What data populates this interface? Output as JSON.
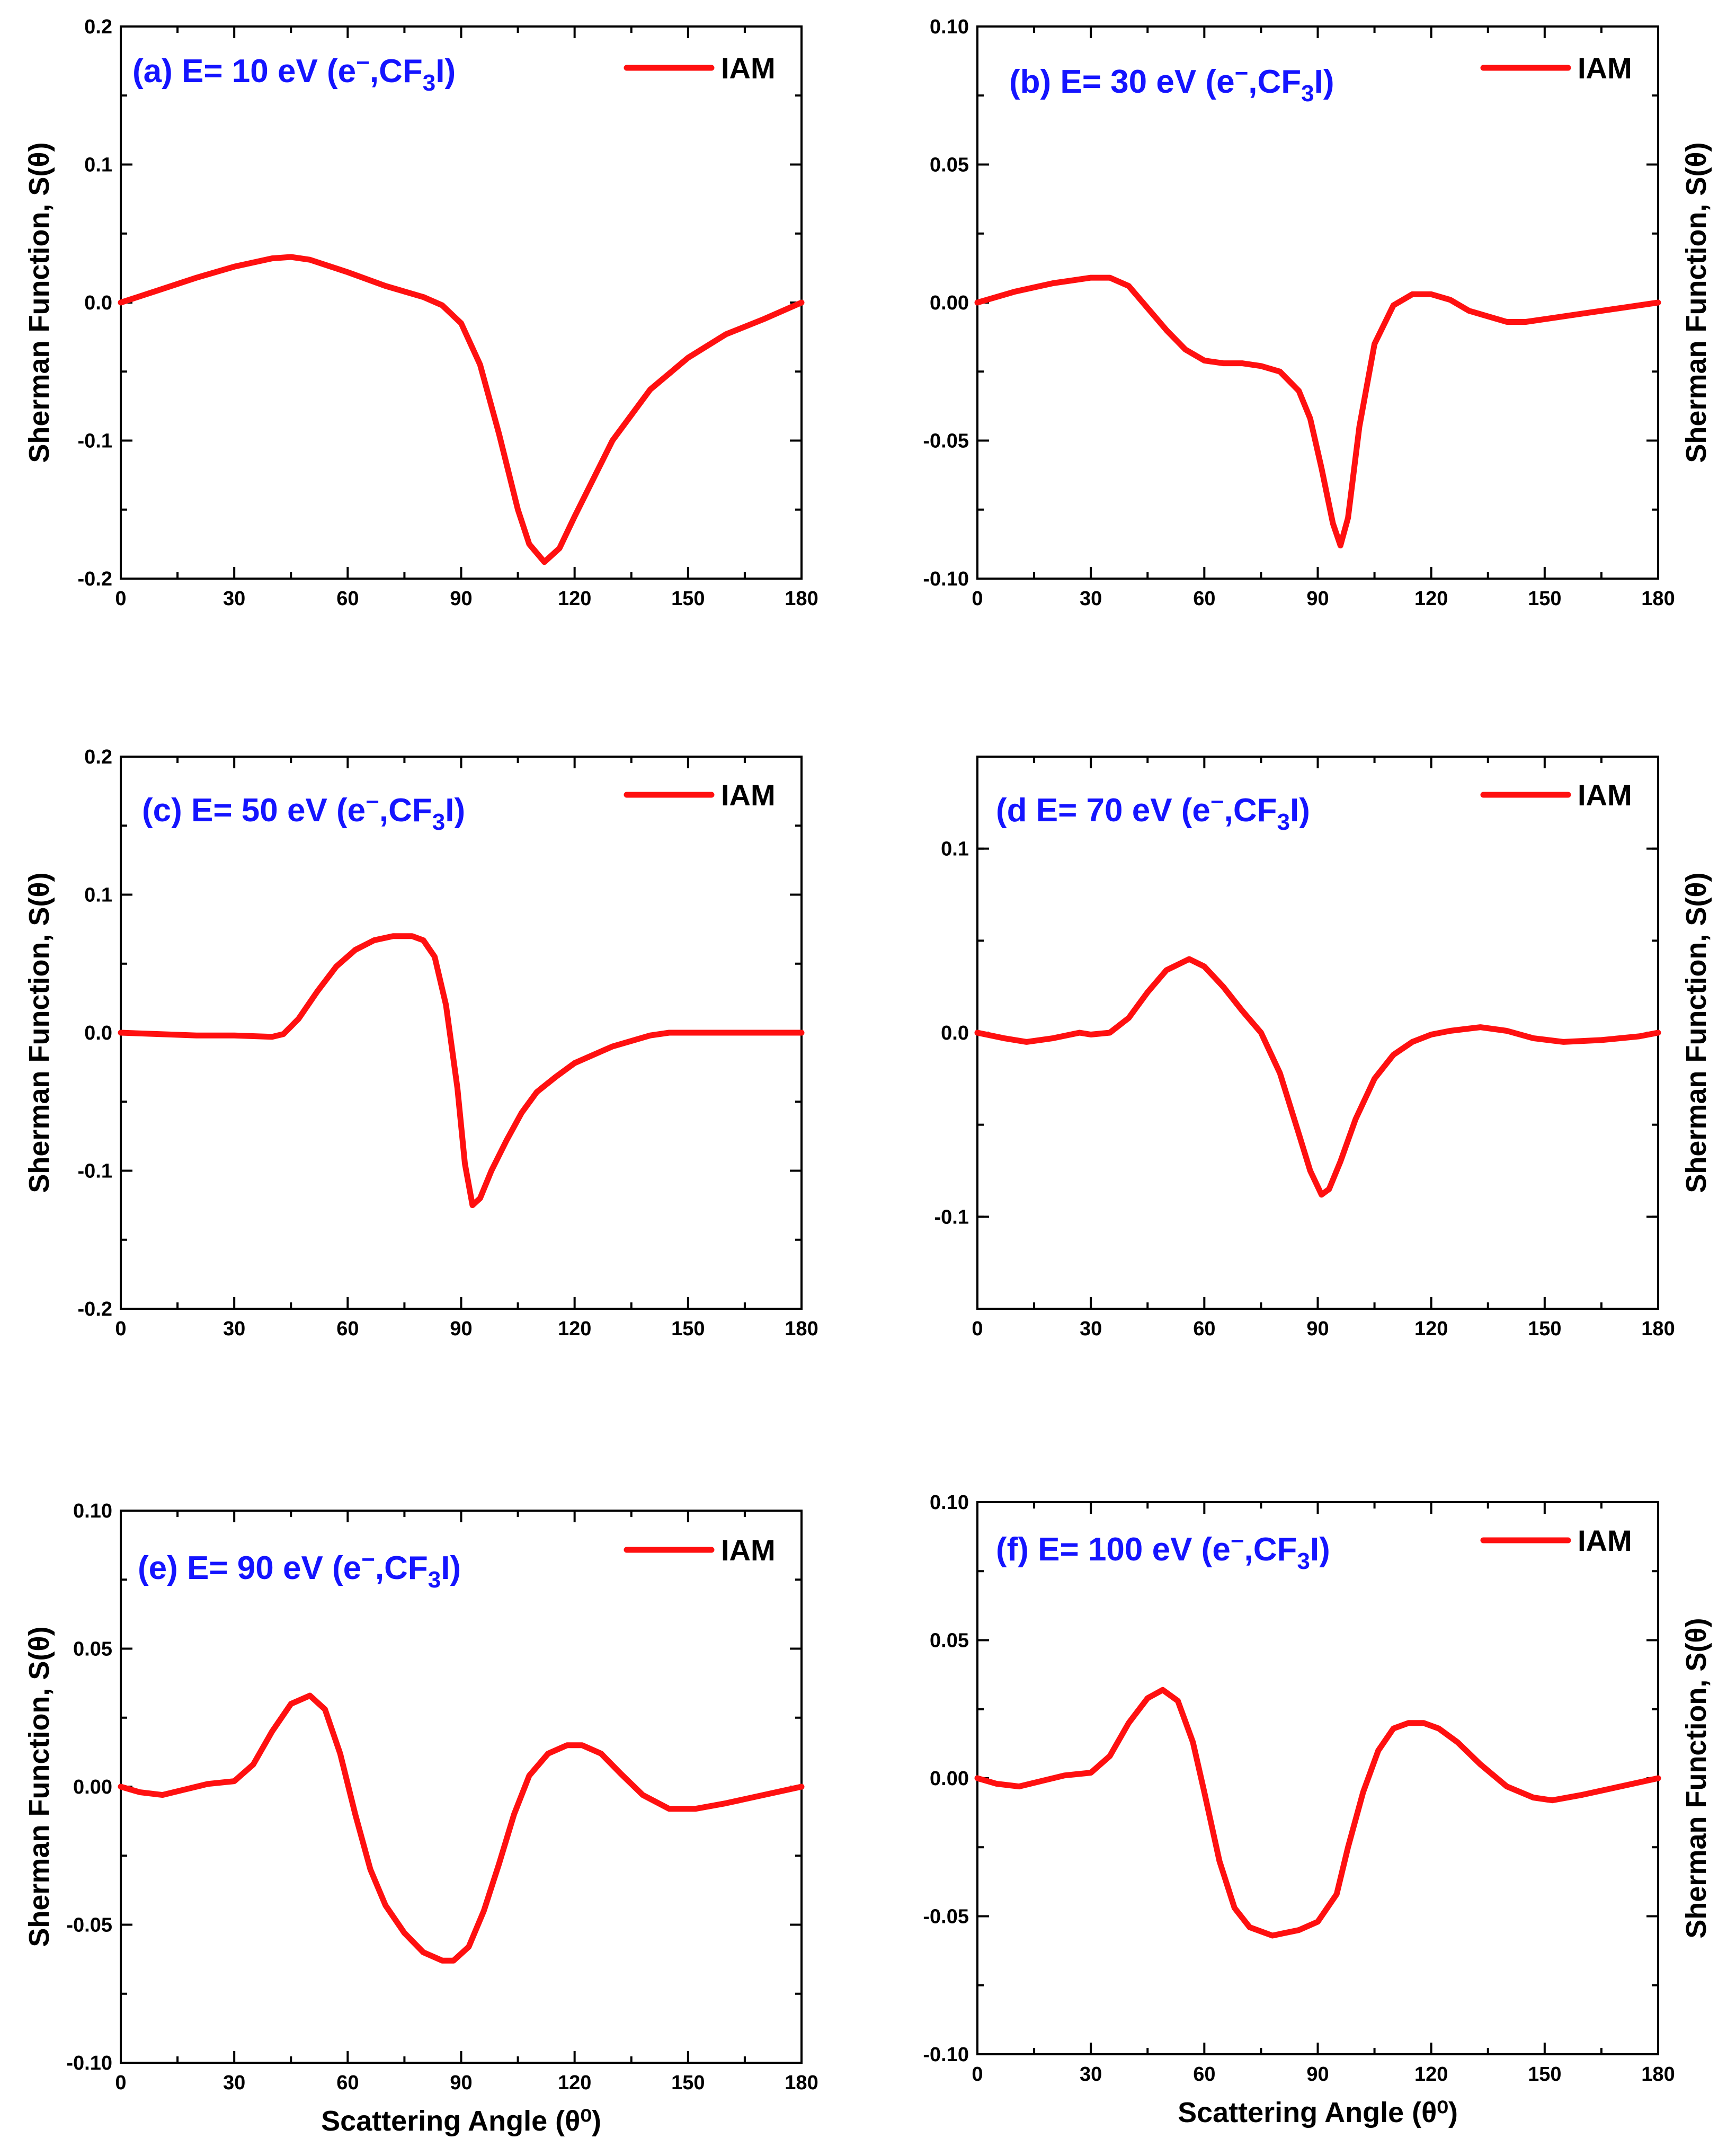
{
  "chart_data": [
    {
      "type": "line",
      "panel": "a",
      "title": "(a) E= 10 eV (e⁻,CF₃I)",
      "title_parts": {
        "pre": "(a) E= 10 eV (e",
        "sup": "−",
        "mid": ",CF",
        "sub": "3",
        "post": "I)"
      },
      "legend": "IAM",
      "xlabel": "",
      "ylabel": "Sherman Function, S(θ)",
      "ylabel_side": "left",
      "xlim": [
        0,
        180
      ],
      "ylim": [
        -0.2,
        0.2
      ],
      "xticks": [
        0,
        30,
        60,
        90,
        120,
        150,
        180
      ],
      "yticks": [
        -0.2,
        -0.1,
        0.0,
        0.1,
        0.2
      ],
      "ytick_labels": [
        "-0.2",
        "-0.1",
        "0.0",
        "0.1",
        "0.2"
      ],
      "series": [
        {
          "name": "IAM",
          "color": "#ff1010",
          "x": [
            0,
            10,
            20,
            30,
            40,
            45,
            50,
            60,
            70,
            80,
            85,
            90,
            95,
            100,
            105,
            108,
            112,
            116,
            120,
            130,
            140,
            150,
            160,
            170,
            180
          ],
          "y": [
            0,
            0.009,
            0.018,
            0.026,
            0.032,
            0.033,
            0.031,
            0.022,
            0.012,
            0.004,
            -0.002,
            -0.015,
            -0.045,
            -0.095,
            -0.15,
            -0.175,
            -0.188,
            -0.178,
            -0.155,
            -0.1,
            -0.063,
            -0.04,
            -0.023,
            -0.012,
            0
          ]
        }
      ]
    },
    {
      "type": "line",
      "panel": "b",
      "title": "(b) E= 30 eV (e⁻,CF₃I)",
      "title_parts": {
        "pre": "(b) E= 30 eV (e",
        "sup": "−",
        "mid": ",CF",
        "sub": "3",
        "post": "I)"
      },
      "legend": "IAM",
      "xlabel": "",
      "ylabel": "Sherman Function, S(θ)",
      "ylabel_side": "right",
      "xlim": [
        0,
        180
      ],
      "ylim": [
        -0.1,
        0.1
      ],
      "xticks": [
        0,
        30,
        60,
        90,
        120,
        150,
        180
      ],
      "yticks": [
        -0.1,
        -0.05,
        0.0,
        0.05,
        0.1
      ],
      "ytick_labels": [
        "-0.10",
        "-0.05",
        "0.00",
        "0.05",
        "0.10"
      ],
      "series": [
        {
          "name": "IAM",
          "color": "#ff1010",
          "x": [
            0,
            10,
            20,
            30,
            35,
            40,
            45,
            50,
            55,
            60,
            65,
            70,
            75,
            80,
            85,
            88,
            91,
            94,
            96,
            98,
            101,
            105,
            110,
            115,
            120,
            125,
            130,
            140,
            145,
            150,
            160,
            170,
            180
          ],
          "y": [
            0,
            0.004,
            0.007,
            0.009,
            0.009,
            0.006,
            -0.002,
            -0.01,
            -0.017,
            -0.021,
            -0.022,
            -0.022,
            -0.023,
            -0.025,
            -0.032,
            -0.042,
            -0.06,
            -0.08,
            -0.088,
            -0.078,
            -0.045,
            -0.015,
            -0.001,
            0.003,
            0.003,
            0.001,
            -0.003,
            -0.007,
            -0.007,
            -0.006,
            -0.004,
            -0.002,
            0
          ]
        }
      ]
    },
    {
      "type": "line",
      "panel": "c",
      "title": "(c) E= 50 eV (e⁻,CF₃I)",
      "title_parts": {
        "pre": "(c) E= 50 eV (e",
        "sup": "−",
        "mid": ",CF",
        "sub": "3",
        "post": "I)"
      },
      "legend": "IAM",
      "xlabel": "",
      "ylabel": "Sherman Function, S(θ)",
      "ylabel_side": "left",
      "xlim": [
        0,
        180
      ],
      "ylim": [
        -0.2,
        0.2
      ],
      "xticks": [
        0,
        30,
        60,
        90,
        120,
        150,
        180
      ],
      "yticks": [
        -0.2,
        -0.1,
        0.0,
        0.1,
        0.2
      ],
      "ytick_labels": [
        "-0.2",
        "-0.1",
        "0.0",
        "0.1",
        "0.2"
      ],
      "series": [
        {
          "name": "IAM",
          "color": "#ff1010",
          "x": [
            0,
            10,
            20,
            30,
            40,
            43,
            47,
            52,
            57,
            62,
            67,
            72,
            77,
            80,
            83,
            86,
            89,
            91,
            93,
            95,
            98,
            102,
            106,
            110,
            115,
            120,
            130,
            140,
            145,
            150,
            160,
            170,
            180
          ],
          "y": [
            0,
            -0.001,
            -0.002,
            -0.002,
            -0.003,
            -0.001,
            0.01,
            0.03,
            0.048,
            0.06,
            0.067,
            0.07,
            0.07,
            0.067,
            0.055,
            0.02,
            -0.04,
            -0.095,
            -0.125,
            -0.12,
            -0.1,
            -0.078,
            -0.058,
            -0.043,
            -0.032,
            -0.022,
            -0.01,
            -0.002,
            0,
            0,
            0,
            0,
            0
          ]
        }
      ]
    },
    {
      "type": "line",
      "panel": "d",
      "title": "(d E= 70 eV (e⁻,CF₃I)",
      "title_parts": {
        "pre": "(d E= 70 eV (e",
        "sup": "−",
        "mid": ",CF",
        "sub": "3",
        "post": "I)"
      },
      "legend": "IAM",
      "xlabel": "",
      "ylabel": "Sherman Function, S(θ)",
      "ylabel_side": "right",
      "xlim": [
        0,
        180
      ],
      "ylim": [
        -0.15,
        0.15
      ],
      "xticks": [
        0,
        30,
        60,
        90,
        120,
        150,
        180
      ],
      "yticks": [
        -0.1,
        0.0,
        0.1
      ],
      "ytick_labels": [
        "-0.1",
        "0.0",
        "0.1"
      ],
      "series": [
        {
          "name": "IAM",
          "color": "#ff1010",
          "x": [
            0,
            7,
            13,
            20,
            27,
            30,
            35,
            40,
            45,
            50,
            56,
            60,
            65,
            70,
            75,
            80,
            85,
            88,
            91,
            93,
            96,
            100,
            105,
            110,
            115,
            120,
            125,
            133,
            140,
            147,
            155,
            165,
            175,
            180
          ],
          "y": [
            0,
            -0.003,
            -0.005,
            -0.003,
            0,
            -0.001,
            0,
            0.008,
            0.022,
            0.034,
            0.04,
            0.036,
            0.025,
            0.012,
            0,
            -0.022,
            -0.055,
            -0.075,
            -0.088,
            -0.085,
            -0.07,
            -0.047,
            -0.025,
            -0.012,
            -0.005,
            -0.001,
            0.001,
            0.003,
            0.001,
            -0.003,
            -0.005,
            -0.004,
            -0.002,
            0
          ]
        }
      ]
    },
    {
      "type": "line",
      "panel": "e",
      "title": "(e) E= 90 eV (e⁻,CF₃I)",
      "title_parts": {
        "pre": "(e) E= 90 eV (e",
        "sup": "−",
        "mid": ",CF",
        "sub": "3",
        "post": "I)"
      },
      "legend": "IAM",
      "xlabel": "Scattering Angle (θ⁰)",
      "ylabel": "Sherman Function, S(θ)",
      "ylabel_side": "left",
      "xlim": [
        0,
        180
      ],
      "ylim": [
        -0.1,
        0.1
      ],
      "xticks": [
        0,
        30,
        60,
        90,
        120,
        150,
        180
      ],
      "yticks": [
        -0.1,
        -0.05,
        0.0,
        0.05,
        0.1
      ],
      "ytick_labels": [
        "-0.10",
        "-0.05",
        "0.00",
        "0.05",
        "0.10"
      ],
      "series": [
        {
          "name": "IAM",
          "color": "#ff1010",
          "x": [
            0,
            5,
            11,
            17,
            23,
            30,
            35,
            40,
            45,
            50,
            54,
            58,
            62,
            66,
            70,
            75,
            80,
            85,
            88,
            92,
            96,
            100,
            104,
            108,
            113,
            118,
            122,
            127,
            132,
            138,
            145,
            152,
            160,
            170,
            180
          ],
          "y": [
            0,
            -0.002,
            -0.003,
            -0.001,
            0.001,
            0.002,
            0.008,
            0.02,
            0.03,
            0.033,
            0.028,
            0.012,
            -0.01,
            -0.03,
            -0.043,
            -0.053,
            -0.06,
            -0.063,
            -0.063,
            -0.058,
            -0.045,
            -0.028,
            -0.01,
            0.004,
            0.012,
            0.015,
            0.015,
            0.012,
            0.005,
            -0.003,
            -0.008,
            -0.008,
            -0.006,
            -0.003,
            0
          ]
        }
      ]
    },
    {
      "type": "line",
      "panel": "f",
      "title": "(f) E= 100 eV (e⁻,CF₃I)",
      "title_parts": {
        "pre": "(f) E= 100 eV (e",
        "sup": "−",
        "mid": ",CF",
        "sub": "3",
        "post": "I)"
      },
      "legend": "IAM",
      "xlabel": "Scattering Angle (θ⁰)",
      "ylabel": "Sherman Function, S(θ)",
      "ylabel_side": "right",
      "xlim": [
        0,
        180
      ],
      "ylim": [
        -0.1,
        0.1
      ],
      "xticks": [
        0,
        30,
        60,
        90,
        120,
        150,
        180
      ],
      "yticks": [
        -0.1,
        -0.05,
        0.0,
        0.05,
        0.1
      ],
      "ytick_labels": [
        "-0.10",
        "-0.05",
        "0.00",
        "0.05",
        "0.10"
      ],
      "series": [
        {
          "name": "IAM",
          "color": "#ff1010",
          "x": [
            0,
            5,
            11,
            17,
            23,
            30,
            35,
            40,
            45,
            49,
            53,
            57,
            60,
            64,
            68,
            72,
            78,
            85,
            90,
            95,
            98,
            102,
            106,
            110,
            114,
            118,
            122,
            127,
            133,
            140,
            147,
            152,
            160,
            170,
            180
          ],
          "y": [
            0,
            -0.002,
            -0.003,
            -0.001,
            0.001,
            0.002,
            0.008,
            0.02,
            0.029,
            0.032,
            0.028,
            0.013,
            -0.005,
            -0.03,
            -0.047,
            -0.054,
            -0.057,
            -0.055,
            -0.052,
            -0.042,
            -0.025,
            -0.005,
            0.01,
            0.018,
            0.02,
            0.02,
            0.018,
            0.013,
            0.005,
            -0.003,
            -0.007,
            -0.008,
            -0.006,
            -0.003,
            0
          ]
        }
      ]
    }
  ]
}
